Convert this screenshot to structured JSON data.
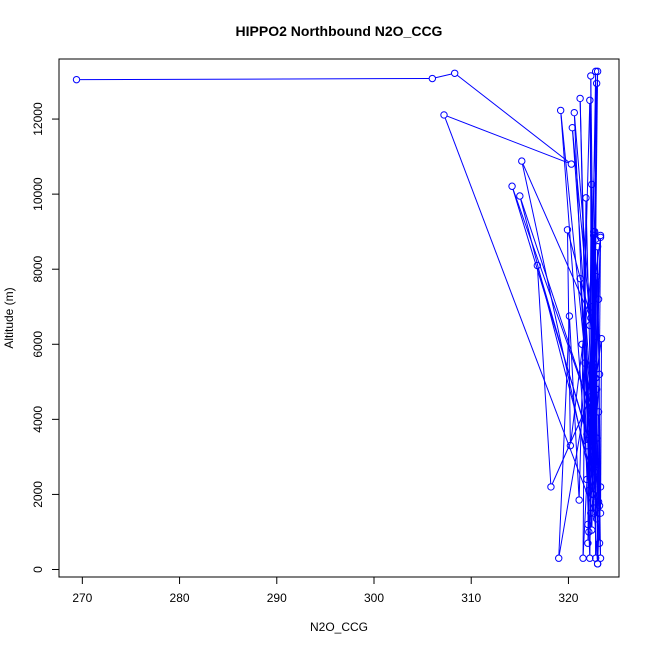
{
  "chart_data": {
    "type": "line",
    "title": "HIPPO2 Northbound N2O_CCG",
    "xlabel": "N2O_CCG",
    "ylabel": "Altitude (m)",
    "xlim": [
      267.6,
      325.2
    ],
    "ylim": [
      -200,
      13600
    ],
    "x_ticks": [
      270,
      280,
      290,
      300,
      310,
      320
    ],
    "x_tick_labels": [
      "270",
      "280",
      "290",
      "300",
      "310",
      "320"
    ],
    "y_ticks": [
      0,
      2000,
      4000,
      6000,
      8000,
      10000,
      12000
    ],
    "y_tick_labels": [
      "0",
      "2000",
      "4000",
      "6000",
      "8000",
      "10000",
      "12000"
    ],
    "grid": false,
    "color": "#0000ff",
    "series": [
      {
        "points": [
          [
            269.4,
            13050
          ],
          [
            306.0,
            13080
          ],
          [
            308.3,
            13220
          ],
          [
            320.3,
            10800
          ],
          [
            307.2,
            12110
          ],
          [
            322.9,
            1350
          ],
          [
            322.3,
            4600
          ],
          [
            318.2,
            2200
          ],
          [
            316.8,
            8100
          ],
          [
            321.9,
            3600
          ],
          [
            322.8,
            8800
          ],
          [
            320.2,
            3300
          ],
          [
            319.9,
            9050
          ],
          [
            322.3,
            6700
          ],
          [
            315.2,
            10880
          ],
          [
            322.6,
            2000
          ],
          [
            321.2,
            7750
          ],
          [
            322.9,
            2800
          ],
          [
            314.2,
            10210
          ],
          [
            322.5,
            4100
          ],
          [
            315.0,
            9950
          ],
          [
            323.1,
            1800
          ],
          [
            322.5,
            5500
          ],
          [
            321.5,
            300
          ],
          [
            321.8,
            9900
          ],
          [
            322.6,
            1500
          ],
          [
            322.9,
            6200
          ],
          [
            319.0,
            300
          ],
          [
            320.1,
            6750
          ],
          [
            321.1,
            1850
          ],
          [
            322.2,
            12500
          ],
          [
            322.6,
            3400
          ],
          [
            323.3,
            8900
          ],
          [
            322.4,
            1050
          ],
          [
            320.6,
            12170
          ],
          [
            322.9,
            4800
          ],
          [
            320.4,
            11770
          ],
          [
            322.8,
            2900
          ],
          [
            319.2,
            12230
          ],
          [
            322.1,
            2100
          ],
          [
            321.2,
            12550
          ],
          [
            322.3,
            1500
          ],
          [
            322.3,
            13150
          ],
          [
            322.8,
            1800
          ],
          [
            322.8,
            13270
          ],
          [
            322.0,
            700
          ],
          [
            323.0,
            13270
          ],
          [
            322.5,
            2000
          ],
          [
            322.9,
            12950
          ],
          [
            322.2,
            6500
          ],
          [
            322.4,
            10260
          ],
          [
            322.5,
            3000
          ],
          [
            322.6,
            9000
          ],
          [
            322.8,
            300
          ],
          [
            323.0,
            8600
          ],
          [
            323.3,
            1500
          ],
          [
            323.4,
            6150
          ],
          [
            321.9,
            3300
          ],
          [
            321.4,
            6000
          ],
          [
            322.2,
            300
          ],
          [
            322.6,
            8900
          ],
          [
            322.0,
            1200
          ],
          [
            322.9,
            7800
          ],
          [
            323.0,
            150
          ],
          [
            321.7,
            5500
          ],
          [
            322.7,
            2600
          ],
          [
            322.8,
            5100
          ],
          [
            323.3,
            300
          ],
          [
            323.1,
            4200
          ],
          [
            323.2,
            700
          ],
          [
            322.4,
            3700
          ],
          [
            323.2,
            1700
          ],
          [
            321.9,
            2400
          ],
          [
            323.1,
            7200
          ],
          [
            322.1,
            1000
          ],
          [
            323.2,
            5200
          ],
          [
            322.7,
            9000
          ],
          [
            322.9,
            3500
          ],
          [
            322.4,
            7000
          ],
          [
            323.3,
            8850
          ],
          [
            323.0,
            150
          ],
          [
            323.3,
            2200
          ]
        ]
      }
    ]
  }
}
